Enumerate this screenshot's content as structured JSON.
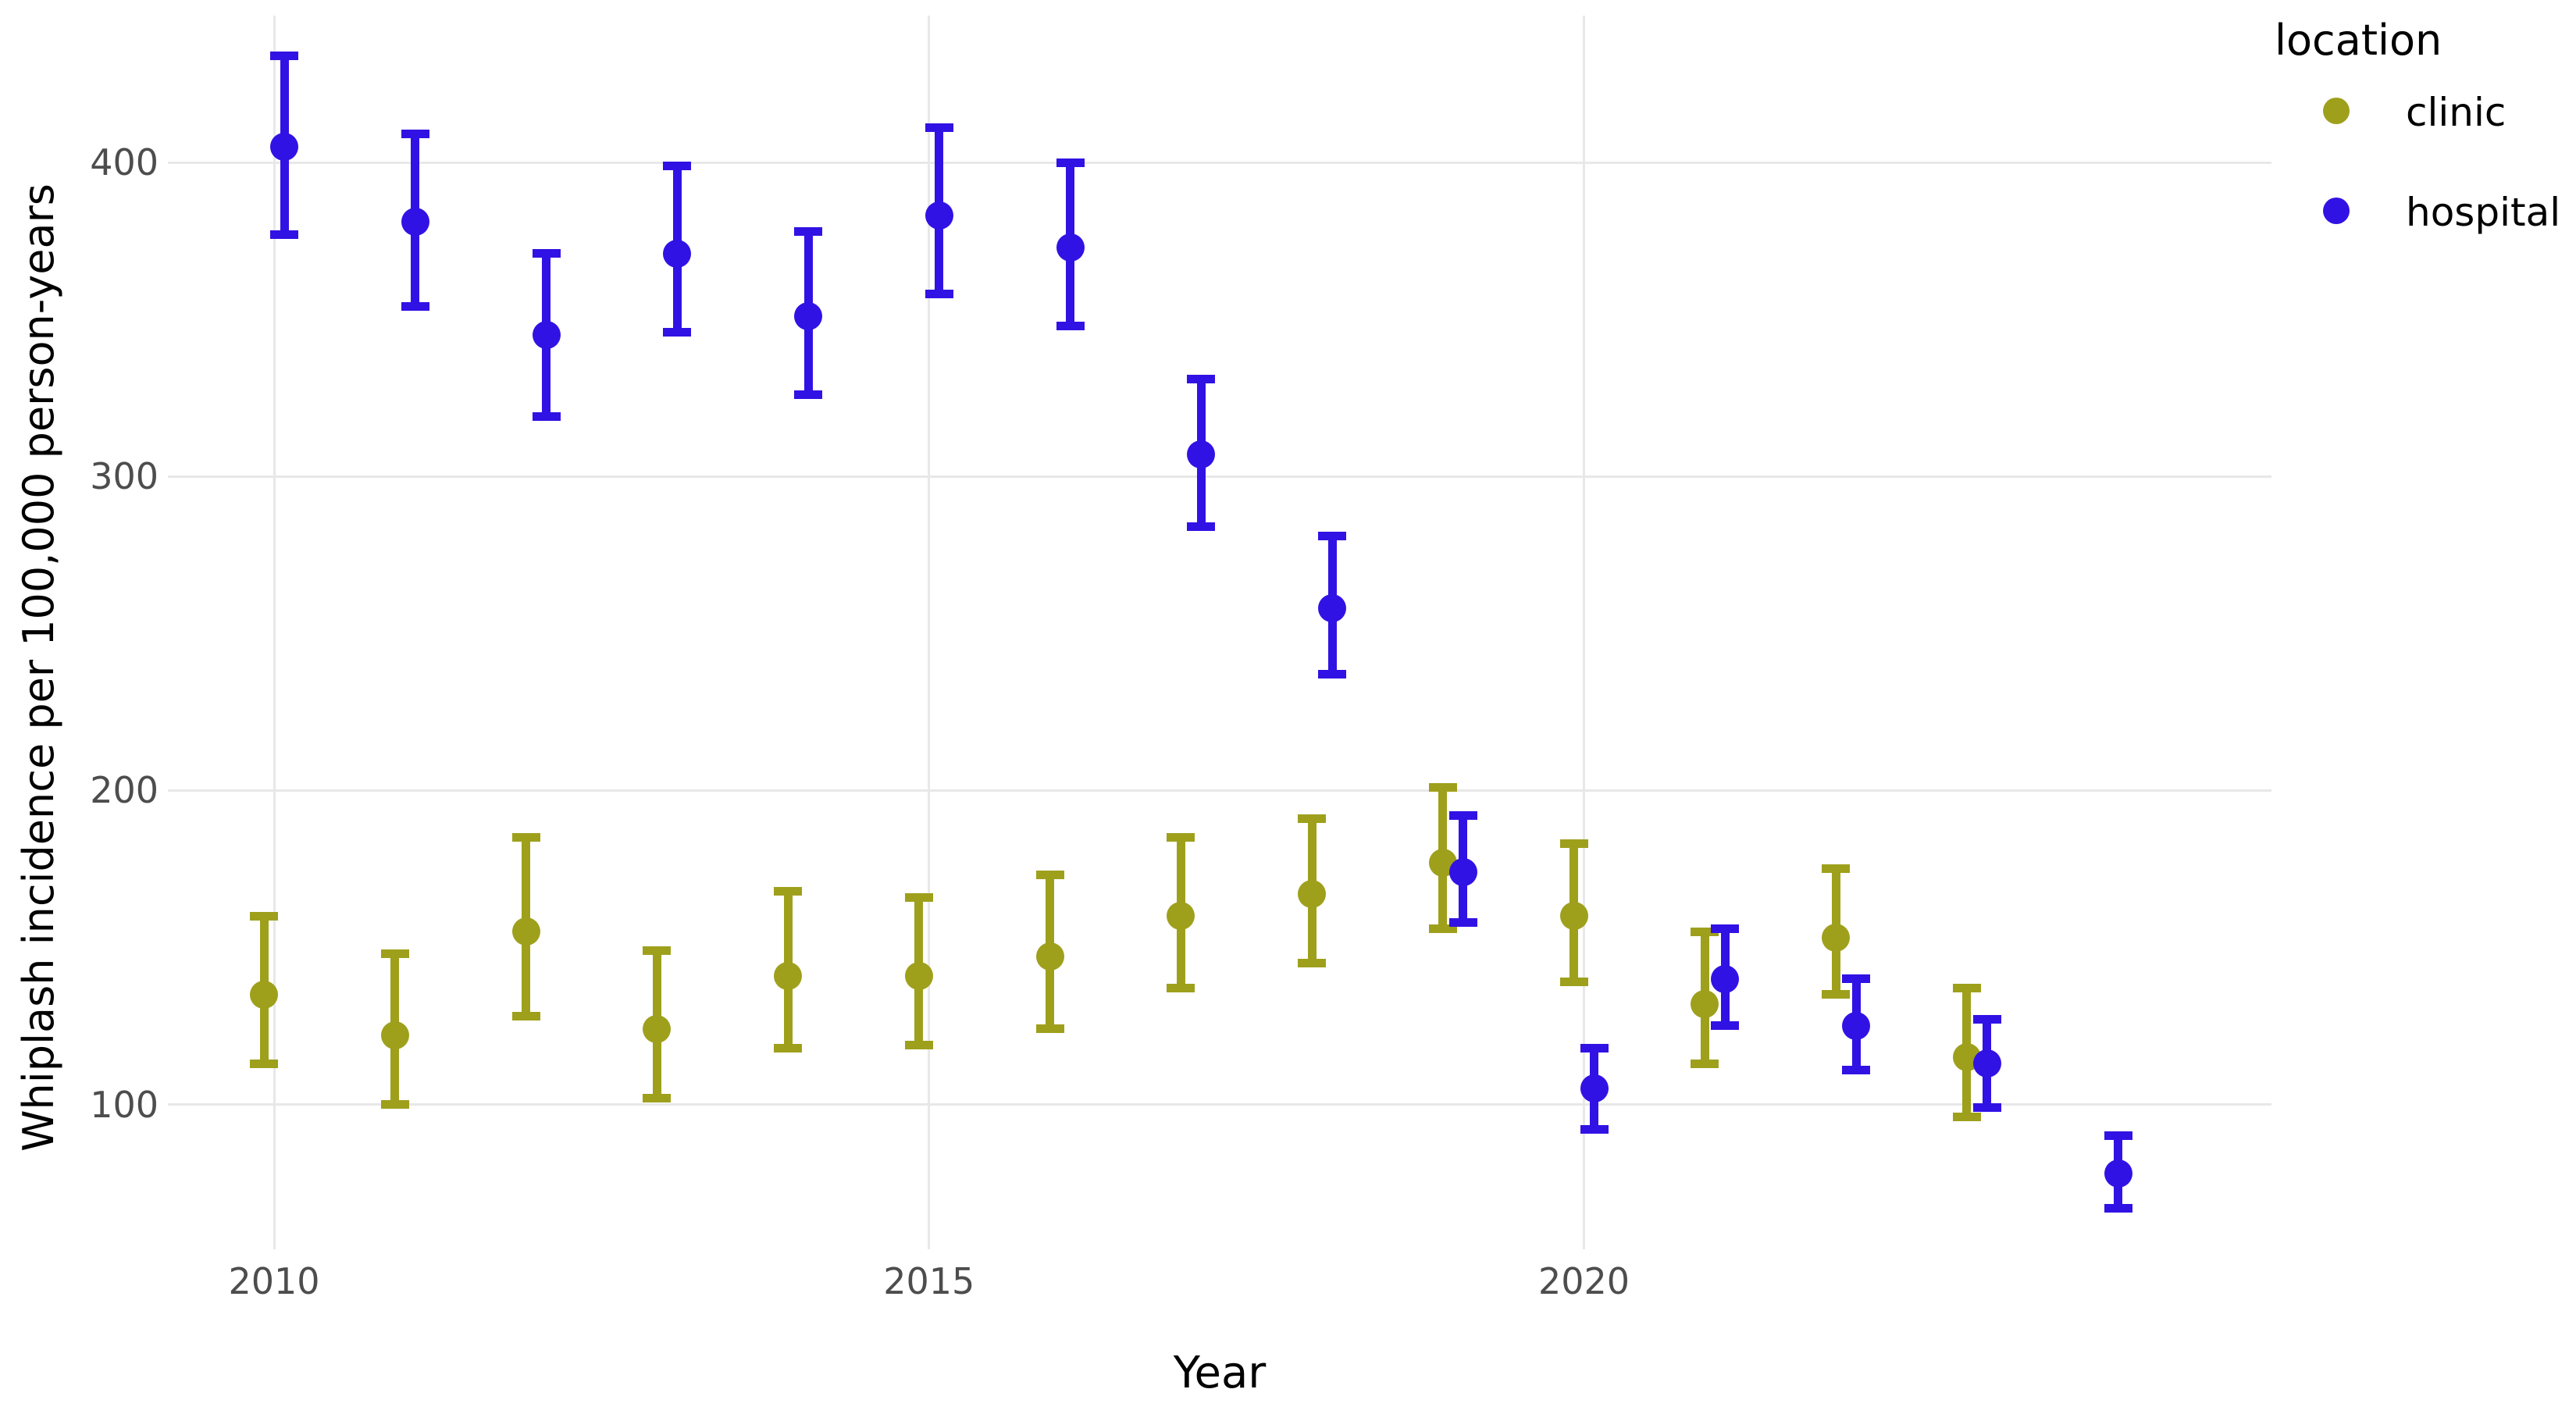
{
  "figure": {
    "background": "#ffffff",
    "panel_background": "#ffffff",
    "gridline_color": "#e8e8e8"
  },
  "legend": {
    "title": "location",
    "items": [
      {
        "label": "clinic",
        "color": "#9EA01C"
      },
      {
        "label": "hospital",
        "color": "#3112E4"
      }
    ]
  },
  "chart_data": {
    "type": "scatter",
    "subtype": "pointrange-errorbars",
    "title": "",
    "xlabel": "Year",
    "ylabel": "Whiplash incidence per 100,000 person-years",
    "x_ticks": [
      2010,
      2015,
      2020
    ],
    "y_ticks": [
      100,
      200,
      300,
      400
    ],
    "xlim": [
      2009.2,
      2025.3
    ],
    "ylim": [
      54,
      447
    ],
    "grid": "major-only",
    "legend_position": "right-top",
    "series": [
      {
        "name": "clinic",
        "color": "#9EA01C",
        "dodge": "left",
        "points": [
          {
            "year": 2010,
            "value": 135,
            "lower": 113,
            "upper": 160
          },
          {
            "year": 2011,
            "value": 122,
            "lower": 100,
            "upper": 148
          },
          {
            "year": 2012,
            "value": 155,
            "lower": 128,
            "upper": 185
          },
          {
            "year": 2013,
            "value": 124,
            "lower": 102,
            "upper": 149
          },
          {
            "year": 2014,
            "value": 141,
            "lower": 118,
            "upper": 168
          },
          {
            "year": 2015,
            "value": 141,
            "lower": 119,
            "upper": 166
          },
          {
            "year": 2016,
            "value": 147,
            "lower": 124,
            "upper": 173
          },
          {
            "year": 2017,
            "value": 160,
            "lower": 137,
            "upper": 185
          },
          {
            "year": 2018,
            "value": 167,
            "lower": 145,
            "upper": 191
          },
          {
            "year": 2019,
            "value": 177,
            "lower": 156,
            "upper": 201
          },
          {
            "year": 2020,
            "value": 160,
            "lower": 139,
            "upper": 183
          },
          {
            "year": 2021,
            "value": 132,
            "lower": 113,
            "upper": 155
          },
          {
            "year": 2022,
            "value": 153,
            "lower": 135,
            "upper": 175
          },
          {
            "year": 2023,
            "value": 115,
            "lower": 96,
            "upper": 137
          }
        ]
      },
      {
        "name": "hospital",
        "color": "#3112E4",
        "dodge": "right",
        "points": [
          {
            "year": 2010,
            "value": 405,
            "lower": 377,
            "upper": 434
          },
          {
            "year": 2011,
            "value": 381,
            "lower": 354,
            "upper": 409
          },
          {
            "year": 2012,
            "value": 345,
            "lower": 319,
            "upper": 371
          },
          {
            "year": 2013,
            "value": 371,
            "lower": 346,
            "upper": 399
          },
          {
            "year": 2014,
            "value": 351,
            "lower": 326,
            "upper": 378
          },
          {
            "year": 2015,
            "value": 383,
            "lower": 358,
            "upper": 411
          },
          {
            "year": 2016,
            "value": 373,
            "lower": 348,
            "upper": 400
          },
          {
            "year": 2017,
            "value": 307,
            "lower": 284,
            "upper": 331
          },
          {
            "year": 2018,
            "value": 258,
            "lower": 237,
            "upper": 281
          },
          {
            "year": 2019,
            "value": 174,
            "lower": 158,
            "upper": 192
          },
          {
            "year": 2020,
            "value": 105,
            "lower": 92,
            "upper": 118
          },
          {
            "year": 2021,
            "value": 140,
            "lower": 125,
            "upper": 156
          },
          {
            "year": 2022,
            "value": 125,
            "lower": 111,
            "upper": 140
          },
          {
            "year": 2023,
            "value": 113,
            "lower": 99,
            "upper": 127
          },
          {
            "year": 2024,
            "value": 78,
            "lower": 67,
            "upper": 90
          }
        ]
      }
    ]
  }
}
